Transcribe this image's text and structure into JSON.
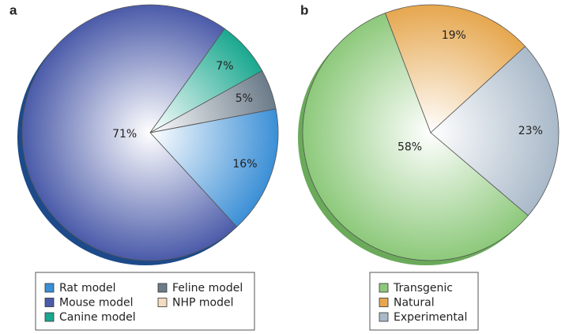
{
  "chart_data": [
    {
      "type": "pie",
      "label": "a",
      "categories": [
        "Rat model",
        "Mouse model",
        "Canine model",
        "Feline model",
        "NHP model"
      ],
      "values": [
        16,
        71,
        7,
        5,
        0
      ],
      "value_labels": [
        "16%",
        "71%",
        "7%",
        "5%",
        null
      ],
      "colors": [
        "#3b8fd6",
        "#4b5ba9",
        "#1aa88f",
        "#6b7b89",
        "#f3dcc0"
      ],
      "legend": "bottom"
    },
    {
      "type": "pie",
      "label": "b",
      "categories": [
        "Transgenic",
        "Natural",
        "Experimental"
      ],
      "values": [
        58,
        19,
        23
      ],
      "value_labels": [
        "58%",
        "19%",
        "23%"
      ],
      "colors": [
        "#8dc97b",
        "#e6a74f",
        "#a9b9c9"
      ],
      "legend": "bottom"
    }
  ]
}
